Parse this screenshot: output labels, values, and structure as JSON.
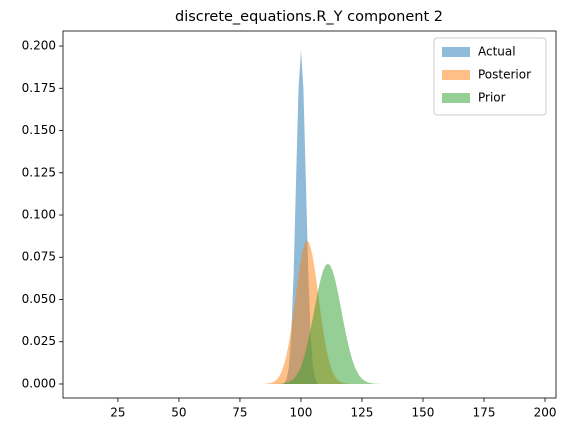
{
  "chart_data": {
    "type": "area",
    "title": "discrete_equations.R_Y component 2",
    "x": [
      85,
      86,
      87,
      88,
      89,
      90,
      91,
      92,
      93,
      94,
      95,
      96,
      97,
      98,
      99,
      100,
      101,
      102,
      103,
      104,
      105,
      106,
      107,
      108,
      109,
      110,
      111,
      112,
      113,
      114,
      115,
      116,
      117,
      118,
      119,
      120,
      121,
      122,
      123,
      124,
      125,
      126,
      127,
      128,
      129,
      130,
      131,
      132
    ],
    "series": [
      {
        "name": "Actual",
        "color": "#1f77b4",
        "values": [
          null,
          null,
          null,
          null,
          null,
          null,
          null,
          null,
          0.0005,
          0.0024,
          0.0092,
          0.0278,
          0.0656,
          0.121,
          0.1747,
          0.1975,
          0.1747,
          0.121,
          0.0656,
          0.0278,
          0.0092,
          0.0024,
          0.0005,
          null,
          null,
          null,
          null,
          null,
          null,
          null,
          null,
          null,
          null,
          null,
          null,
          null,
          null,
          null,
          null,
          null,
          null,
          null,
          null,
          null,
          null,
          null,
          null,
          null
        ]
      },
      {
        "name": "Posterior",
        "color": "#ff7f0e",
        "values": [
          0.0001,
          0.0002,
          0.0004,
          0.0007,
          0.0014,
          0.0025,
          0.0043,
          0.007,
          0.011,
          0.0166,
          0.0238,
          0.0327,
          0.0429,
          0.0538,
          0.0644,
          0.0738,
          0.0808,
          0.0845,
          0.0845,
          0.0808,
          0.0738,
          0.0644,
          0.0538,
          0.0429,
          0.0327,
          0.0238,
          0.0166,
          0.011,
          0.007,
          0.0043,
          0.0025,
          0.0014,
          0.0007,
          0.0004,
          0.0002,
          0.0001,
          null,
          null,
          null,
          null,
          null,
          null,
          null,
          null,
          null,
          null,
          null,
          null
        ]
      },
      {
        "name": "Prior",
        "color": "#2ca02c",
        "values": [
          null,
          null,
          null,
          null,
          null,
          0.0001,
          0.0001,
          0.0002,
          0.0004,
          0.0007,
          0.0012,
          0.002,
          0.0031,
          0.0048,
          0.0072,
          0.0103,
          0.0145,
          0.0196,
          0.0257,
          0.0326,
          0.0401,
          0.0478,
          0.0552,
          0.0617,
          0.0668,
          0.0701,
          0.0712,
          0.0701,
          0.0668,
          0.0617,
          0.0552,
          0.0478,
          0.0401,
          0.0326,
          0.0257,
          0.0196,
          0.0145,
          0.0103,
          0.0072,
          0.0048,
          0.0031,
          0.002,
          0.0012,
          0.0007,
          0.0004,
          0.0002,
          0.0001,
          0.0001
        ]
      }
    ],
    "opacity": 0.5,
    "xlim": [
      2.5,
      204.5
    ],
    "xticks": [
      25,
      50,
      75,
      100,
      125,
      150,
      175,
      200
    ],
    "ylim": [
      -0.0083,
      0.2089
    ],
    "yticks": [
      {
        "value": 0,
        "label": "0.000"
      },
      {
        "value": 0.025,
        "label": "0.025"
      },
      {
        "value": 0.05,
        "label": "0.050"
      },
      {
        "value": 0.075,
        "label": "0.075"
      },
      {
        "value": 0.1,
        "label": "0.100"
      },
      {
        "value": 0.125,
        "label": "0.125"
      },
      {
        "value": 0.15,
        "label": "0.150"
      },
      {
        "value": 0.175,
        "label": "0.175"
      },
      {
        "value": 0.2,
        "label": "0.200"
      }
    ],
    "legend": "upper right"
  }
}
